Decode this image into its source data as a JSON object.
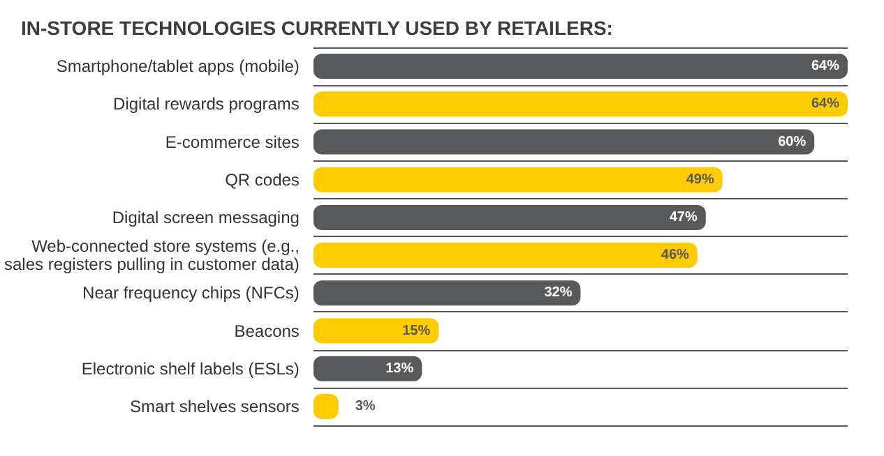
{
  "chart_data": {
    "type": "bar",
    "orientation": "horizontal",
    "title": "IN-STORE TECHNOLOGIES CURRENTLY USED BY RETAILERS:",
    "categories": [
      "Smartphone/tablet apps (mobile)",
      "Digital rewards programs",
      "E-commerce sites",
      "QR codes",
      "Digital screen messaging",
      "Web-connected store systems (e.g.,\nsales registers pulling in customer data)",
      "Near frequency chips (NFCs)",
      "Beacons",
      "Electronic shelf labels (ESLs)",
      "Smart shelves sensors"
    ],
    "values": [
      64,
      64,
      60,
      49,
      47,
      46,
      32,
      15,
      13,
      3
    ],
    "value_labels": [
      "64%",
      "64%",
      "60%",
      "49%",
      "47%",
      "46%",
      "32%",
      "15%",
      "13%",
      "3%"
    ],
    "colors": [
      "#58595b",
      "#ffcc00",
      "#58595b",
      "#ffcc00",
      "#58595b",
      "#ffcc00",
      "#58595b",
      "#ffcc00",
      "#58595b",
      "#ffcc00"
    ],
    "grid": "y"
  }
}
